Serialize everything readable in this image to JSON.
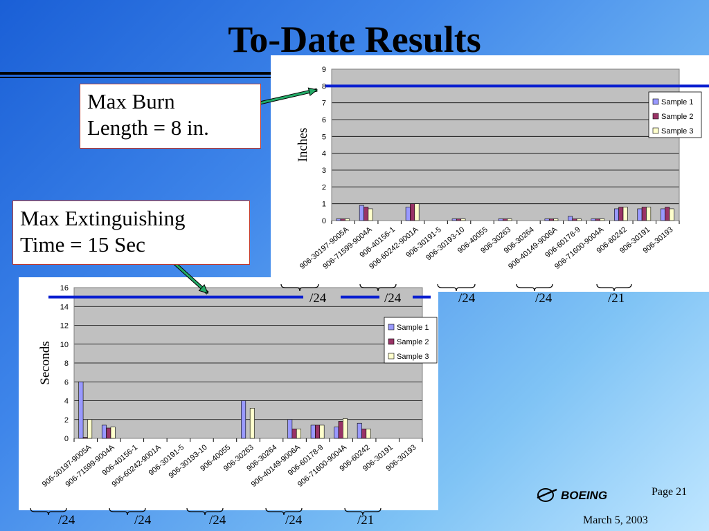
{
  "slide": {
    "title": "To-Date Results",
    "callout_burn": [
      "Max Burn",
      "Length = 8 in."
    ],
    "callout_ext": [
      "Max Extinguishing",
      "Time = 15 Sec"
    ],
    "page": "Page 21",
    "date": "March 5, 2003",
    "brand": "BOEING",
    "counts_top": [
      "/24",
      "/24",
      "/24",
      "/24",
      "/21"
    ],
    "counts_bottom": [
      "/24",
      "/24",
      "/24",
      "/24",
      "/21"
    ],
    "colors": {
      "sample1": "#9999ff",
      "sample2": "#993366",
      "sample3": "#ffffcc",
      "limit_line": "#0a1fd0",
      "arrow": "#22aa66",
      "plot_bg": "#c0c0c0"
    }
  },
  "chart_data": [
    {
      "type": "bar",
      "title": "",
      "ylabel": "Inches",
      "ylim": [
        0,
        9
      ],
      "yticks": [
        0,
        1,
        2,
        3,
        4,
        5,
        6,
        7,
        8,
        9
      ],
      "legend_position": "right",
      "limit_value": 8,
      "categories": [
        "906-30197-9005A",
        "906-71599-9004A",
        "906-40156-1",
        "906-60242-9001A",
        "906-30191-5",
        "906-30193-10",
        "906-40055",
        "906-30263",
        "906-30264",
        "906-40149-9006A",
        "906-60178-9",
        "906-71600-9004A",
        "906-60242",
        "906-30191",
        "906-30193"
      ],
      "series": [
        {
          "name": "Sample 1",
          "values": [
            0.1,
            0.9,
            0,
            0.8,
            0,
            0.1,
            0,
            0.1,
            0,
            0.1,
            0.25,
            0.1,
            0.7,
            0.7,
            0.7
          ]
        },
        {
          "name": "Sample 2",
          "values": [
            0.1,
            0.8,
            0,
            1.0,
            0,
            0.1,
            0,
            0.1,
            0,
            0.1,
            0.1,
            0.1,
            0.8,
            0.8,
            0.8
          ]
        },
        {
          "name": "Sample 3",
          "values": [
            0.1,
            0.7,
            0,
            1.0,
            0,
            0.1,
            0,
            0.1,
            0,
            0.1,
            0.1,
            0.1,
            0.8,
            0.8,
            0.7
          ]
        }
      ]
    },
    {
      "type": "bar",
      "title": "",
      "ylabel": "Seconds",
      "ylim": [
        0,
        16
      ],
      "yticks": [
        0,
        2,
        4,
        6,
        8,
        10,
        12,
        14,
        16
      ],
      "legend_position": "right",
      "limit_value": 15,
      "categories": [
        "906-30197-9005A",
        "906-71599-9004A",
        "906-40156-1",
        "906-60242-9001A",
        "906-30191-5",
        "906-30193-10",
        "906-40055",
        "906-30263",
        "906-30264",
        "906-40149-9006A",
        "906-60178-9",
        "906-71600-9004A",
        "906-60242",
        "906-30191",
        "906-30193"
      ],
      "series": [
        {
          "name": "Sample 1",
          "values": [
            6,
            1.4,
            0,
            0,
            0,
            0,
            0,
            4,
            0,
            2,
            1.4,
            1.2,
            1.6,
            0,
            0
          ]
        },
        {
          "name": "Sample 2",
          "values": [
            0.1,
            1.1,
            0,
            0,
            0,
            0,
            0,
            0,
            0,
            1,
            1.4,
            1.8,
            1,
            0,
            0
          ]
        },
        {
          "name": "Sample 3",
          "values": [
            2,
            1.2,
            0,
            0,
            0,
            0,
            0,
            3.2,
            0,
            1,
            1.4,
            2.1,
            1,
            0,
            0
          ]
        }
      ]
    }
  ]
}
